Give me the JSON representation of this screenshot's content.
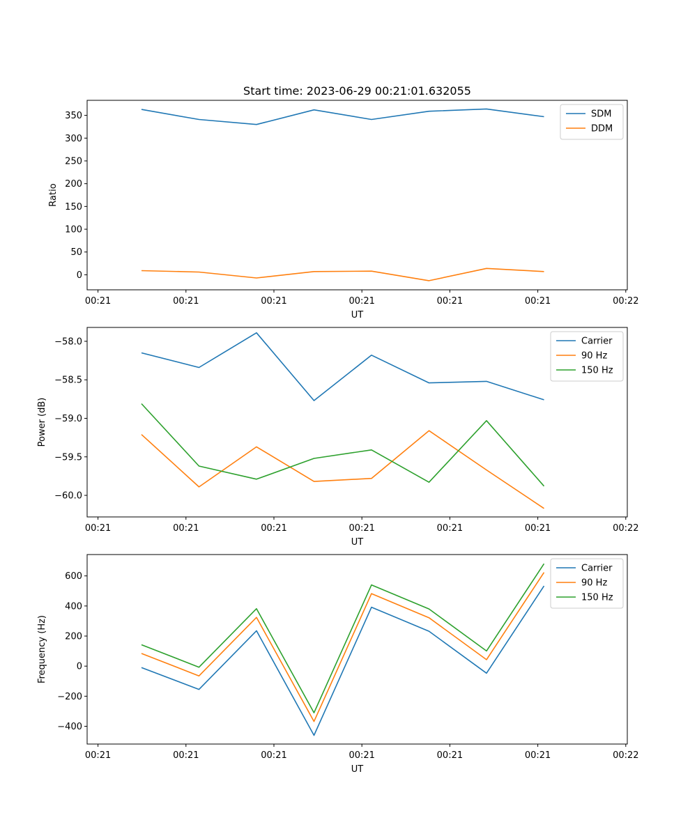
{
  "title": "Start time: 2023-06-29 00:21:01.632055",
  "chart_data": [
    {
      "type": "line",
      "xlabel": "UT",
      "ylabel": "Ratio",
      "x_ticks": [
        "00:21",
        "00:21",
        "00:21",
        "00:21",
        "00:21",
        "00:21",
        "00:22"
      ],
      "y_ticks": [
        0,
        50,
        100,
        150,
        200,
        250,
        300,
        350
      ],
      "ylim": [
        -33,
        383
      ],
      "legend": "top-right",
      "series": [
        {
          "name": "SDM",
          "color": "#1f77b4",
          "values": [
            363,
            341,
            330,
            362,
            341,
            359,
            364,
            347
          ]
        },
        {
          "name": "DDM",
          "color": "#ff7f0e",
          "values": [
            9,
            6,
            -7,
            7,
            8,
            -13,
            14,
            7
          ]
        }
      ]
    },
    {
      "type": "line",
      "xlabel": "UT",
      "ylabel": "Power (dB)",
      "x_ticks": [
        "00:21",
        "00:21",
        "00:21",
        "00:21",
        "00:21",
        "00:21",
        "00:22"
      ],
      "y_ticks": [
        -58.0,
        -58.5,
        -59.0,
        -59.5,
        -60.0
      ],
      "y_tick_labels": [
        "−58.0",
        "−58.5",
        "−59.0",
        "−59.5",
        "−60.0"
      ],
      "ylim": [
        -60.28,
        -57.82
      ],
      "legend": "top-right",
      "series": [
        {
          "name": "Carrier",
          "color": "#1f77b4",
          "values": [
            -58.15,
            -58.34,
            -57.89,
            -58.77,
            -58.18,
            -58.54,
            -58.52,
            -58.76
          ]
        },
        {
          "name": "90 Hz",
          "color": "#ff7f0e",
          "values": [
            -59.21,
            -59.89,
            -59.37,
            -59.82,
            -59.78,
            -59.16,
            -59.67,
            -60.17
          ]
        },
        {
          "name": "150 Hz",
          "color": "#2ca02c",
          "values": [
            -58.81,
            -59.62,
            -59.79,
            -59.52,
            -59.41,
            -59.83,
            -59.03,
            -59.88
          ]
        }
      ]
    },
    {
      "type": "line",
      "xlabel": "UT",
      "ylabel": "Frequency (Hz)",
      "x_ticks": [
        "00:21",
        "00:21",
        "00:21",
        "00:21",
        "00:21",
        "00:21",
        "00:22"
      ],
      "y_ticks": [
        -400,
        -200,
        0,
        200,
        400,
        600
      ],
      "y_tick_labels": [
        "−400",
        "−200",
        "0",
        "200",
        "400",
        "600"
      ],
      "ylim": [
        -518,
        742
      ],
      "legend": "top-right",
      "series": [
        {
          "name": "Carrier",
          "color": "#1f77b4",
          "values": [
            -10,
            -155,
            235,
            -460,
            392,
            232,
            -47,
            533
          ]
        },
        {
          "name": "90 Hz",
          "color": "#ff7f0e",
          "values": [
            84,
            -65,
            324,
            -368,
            482,
            322,
            43,
            623
          ]
        },
        {
          "name": "150 Hz",
          "color": "#2ca02c",
          "values": [
            142,
            -7,
            382,
            -310,
            540,
            380,
            101,
            681
          ]
        }
      ]
    }
  ]
}
